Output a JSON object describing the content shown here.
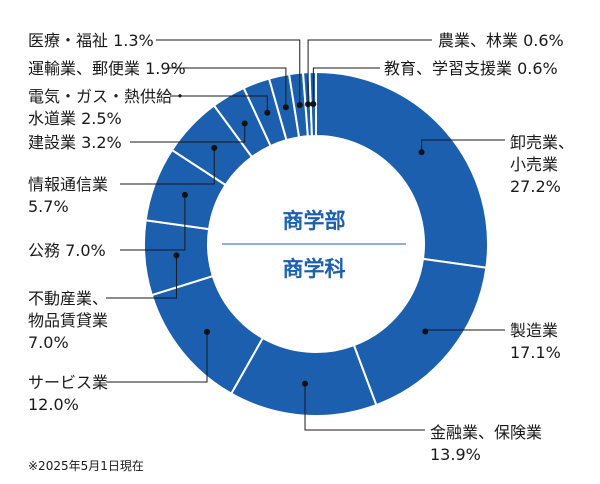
{
  "chart_data": {
    "type": "pie",
    "style": "donut",
    "center_label": {
      "line1": "商学部",
      "line2": "商学科"
    },
    "note": "※2025年5月1日現在",
    "colors": {
      "slice": "#1b5fae",
      "separator": "#ffffff",
      "leader": "#1a1a1a",
      "center_text": "#1b5fae"
    },
    "categories": [
      "卸売業、小売業",
      "製造業",
      "金融業、保険業",
      "サービス業",
      "不動産業、物品賃貸業",
      "公務",
      "情報通信業",
      "建設業",
      "電気・ガス・熱供給・水道業",
      "運輸業、郵便業",
      "医療・福祉",
      "農業、林業",
      "教育、学習支援業"
    ],
    "values": [
      27.2,
      17.1,
      13.9,
      12.0,
      7.0,
      7.0,
      5.7,
      3.2,
      2.5,
      1.9,
      1.3,
      0.6,
      0.6
    ],
    "labels": [
      {
        "lines": [
          "卸売業、",
          "小売業",
          "27.2%"
        ]
      },
      {
        "lines": [
          "製造業",
          "17.1%"
        ]
      },
      {
        "lines": [
          "金融業、保険業",
          "13.9%"
        ]
      },
      {
        "lines": [
          "サービス業",
          "12.0%"
        ]
      },
      {
        "lines": [
          "不動産業、",
          "物品賃貸業",
          "7.0%"
        ]
      },
      {
        "lines": [
          "公務 7.0%"
        ]
      },
      {
        "lines": [
          "情報通信業",
          "5.7%"
        ]
      },
      {
        "lines": [
          "建設業 3.2%"
        ]
      },
      {
        "lines": [
          "電気・ガス・熱供給・",
          "水道業 2.5%"
        ]
      },
      {
        "lines": [
          "運輸業、郵便業 1.9%"
        ]
      },
      {
        "lines": [
          "医療・福祉 1.3%"
        ]
      },
      {
        "lines": [
          "農業、林業 0.6%"
        ]
      },
      {
        "lines": [
          "教育、学習支援業 0.6%"
        ]
      }
    ]
  }
}
